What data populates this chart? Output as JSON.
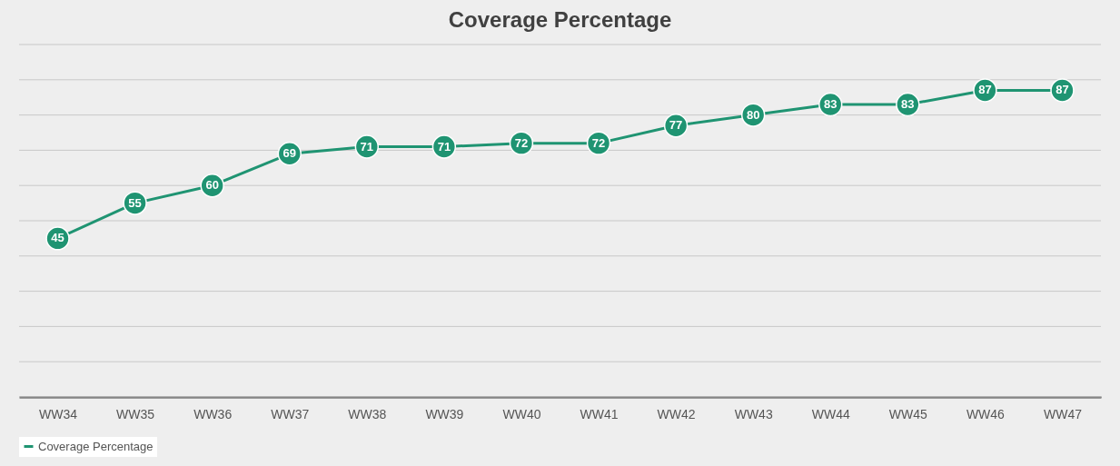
{
  "chart_data": {
    "type": "line",
    "title": "Coverage Percentage",
    "categories": [
      "WW34",
      "WW35",
      "WW36",
      "WW37",
      "WW38",
      "WW39",
      "WW40",
      "WW41",
      "WW42",
      "WW43",
      "WW44",
      "WW45",
      "WW46",
      "WW47"
    ],
    "series": [
      {
        "name": "Coverage Percentage",
        "color": "#1f9472",
        "values": [
          45,
          55,
          60,
          69,
          71,
          71,
          72,
          72,
          77,
          80,
          83,
          83,
          87,
          87
        ]
      }
    ],
    "ylim": [
      0,
      100
    ],
    "yticks": [
      {
        "value": 0,
        "label": null
      },
      {
        "value": 10,
        "label": null
      },
      {
        "value": 20,
        "label": null
      },
      {
        "value": 30,
        "label": null
      },
      {
        "value": 40,
        "label": null
      },
      {
        "value": 50,
        "label": null
      },
      {
        "value": 60,
        "label": null
      },
      {
        "value": 70,
        "label": null
      },
      {
        "value": 80,
        "label": null
      },
      {
        "value": 90,
        "label": null
      },
      {
        "value": 100,
        "label": null
      }
    ],
    "tick_labels": "x",
    "grid": "y",
    "legend": "bottom",
    "marker": "circle",
    "line_style": "solid",
    "data_labels": true
  }
}
